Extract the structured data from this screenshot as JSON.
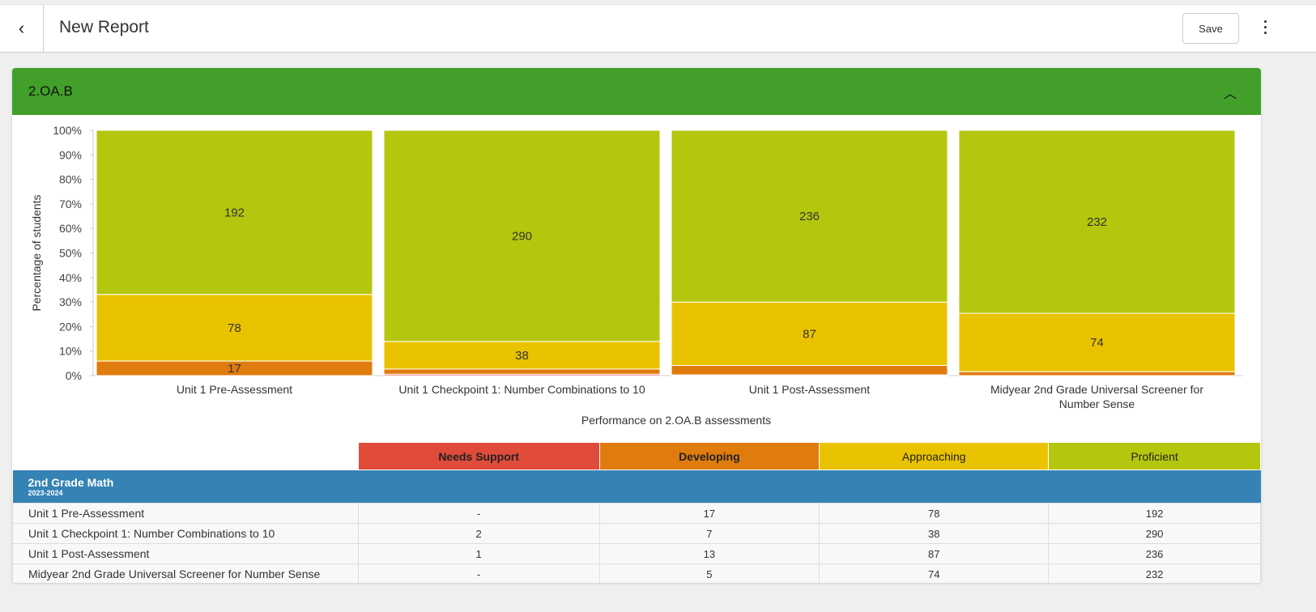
{
  "header": {
    "title": "New Report",
    "save_label": "Save",
    "back_icon": "chevron-left-icon",
    "more_icon": "kebab-icon"
  },
  "section": {
    "title": "2.OA.B",
    "collapse_icon": "chevron-up-icon"
  },
  "chart_data": {
    "type": "bar",
    "stacked": true,
    "normalized": true,
    "categories": [
      "Unit 1 Pre-Assessment",
      "Unit 1 Checkpoint 1: Number Combinations to 10",
      "Unit 1 Post-Assessment",
      "Midyear 2nd Grade Universal Screener for Number Sense"
    ],
    "series": [
      {
        "name": "Needs Support",
        "color": "#e04b3a",
        "values": [
          0,
          2,
          1,
          0
        ]
      },
      {
        "name": "Developing",
        "color": "#e07b0e",
        "values": [
          17,
          7,
          13,
          5
        ]
      },
      {
        "name": "Approaching",
        "color": "#eac300",
        "values": [
          78,
          38,
          87,
          74
        ]
      },
      {
        "name": "Proficient",
        "color": "#b5c60e",
        "values": [
          192,
          290,
          236,
          232
        ]
      }
    ],
    "xlabel": "Performance on 2.OA.B assessments",
    "ylabel": "Percentage of students",
    "ylim": [
      0,
      100
    ],
    "yticks": [
      "0%",
      "10%",
      "20%",
      "30%",
      "40%",
      "50%",
      "60%",
      "70%",
      "80%",
      "90%",
      "100%"
    ]
  },
  "table": {
    "columns": [
      "Needs Support",
      "Developing",
      "Approaching",
      "Proficient"
    ],
    "column_colors": [
      "#e04b3a",
      "#e07b0e",
      "#eac300",
      "#b5c60e"
    ],
    "group": {
      "name": "2nd Grade Math",
      "year": "2023-2024"
    },
    "rows": [
      {
        "name": "Unit 1 Pre-Assessment",
        "cells": [
          "-",
          "17",
          "78",
          "192"
        ]
      },
      {
        "name": "Unit 1 Checkpoint 1: Number Combinations to 10",
        "cells": [
          "2",
          "7",
          "38",
          "290"
        ]
      },
      {
        "name": "Unit 1 Post-Assessment",
        "cells": [
          "1",
          "13",
          "87",
          "236"
        ]
      },
      {
        "name": "Midyear 2nd Grade Universal Screener for Number Sense",
        "cells": [
          "-",
          "5",
          "74",
          "232"
        ]
      }
    ]
  }
}
